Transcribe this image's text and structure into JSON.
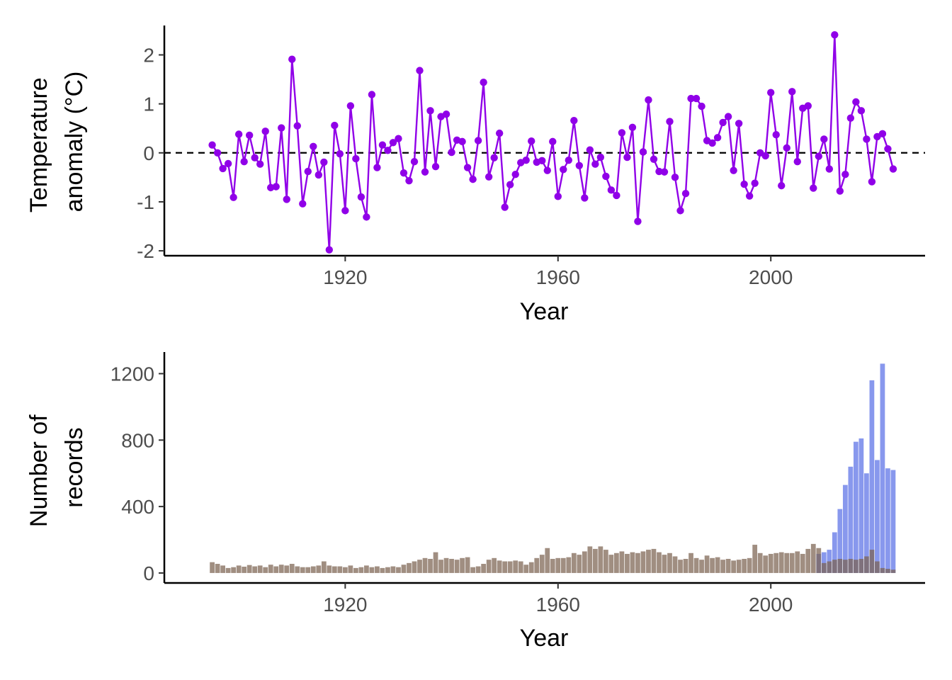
{
  "chart_data": [
    {
      "type": "line",
      "xlabel": "Year",
      "ylabel_lines": [
        "Temperature",
        "anomaly (°C)"
      ],
      "xlim": [
        1886,
        2029
      ],
      "ylim": [
        -2.1,
        2.6
      ],
      "xticks": [
        1920,
        1960,
        2000
      ],
      "yticks": [
        -2,
        -1,
        0,
        1,
        2
      ],
      "ytick_labels": [
        "-2",
        "-1",
        "0",
        "1",
        "2"
      ],
      "reference_line": 0,
      "color": "#9000e8",
      "grid": false,
      "x": [
        1895,
        1896,
        1897,
        1898,
        1899,
        1900,
        1901,
        1902,
        1903,
        1904,
        1905,
        1906,
        1907,
        1908,
        1909,
        1910,
        1911,
        1912,
        1913,
        1914,
        1915,
        1916,
        1917,
        1918,
        1919,
        1920,
        1921,
        1922,
        1923,
        1924,
        1925,
        1926,
        1927,
        1928,
        1929,
        1930,
        1931,
        1932,
        1933,
        1934,
        1935,
        1936,
        1937,
        1938,
        1939,
        1940,
        1941,
        1942,
        1943,
        1944,
        1945,
        1946,
        1947,
        1948,
        1949,
        1950,
        1951,
        1952,
        1953,
        1954,
        1955,
        1956,
        1957,
        1958,
        1959,
        1960,
        1961,
        1962,
        1963,
        1964,
        1965,
        1966,
        1967,
        1968,
        1969,
        1970,
        1971,
        1972,
        1973,
        1974,
        1975,
        1976,
        1977,
        1978,
        1979,
        1980,
        1981,
        1982,
        1983,
        1984,
        1985,
        1986,
        1987,
        1988,
        1989,
        1990,
        1991,
        1992,
        1993,
        1994,
        1995,
        1996,
        1997,
        1998,
        1999,
        2000,
        2001,
        2002,
        2003,
        2004,
        2005,
        2006,
        2007,
        2008,
        2009,
        2010,
        2011,
        2012,
        2013,
        2014,
        2015,
        2016,
        2017,
        2018,
        2019,
        2020,
        2021,
        2022,
        2023
      ],
      "y": [
        0.16,
        0.0,
        -0.32,
        -0.22,
        -0.91,
        0.38,
        -0.18,
        0.36,
        -0.1,
        -0.23,
        0.44,
        -0.71,
        -0.69,
        0.51,
        -0.95,
        1.91,
        0.55,
        -1.04,
        -0.38,
        0.13,
        -0.45,
        -0.19,
        -1.98,
        0.56,
        -0.02,
        -1.18,
        0.96,
        -0.12,
        -0.9,
        -1.31,
        1.19,
        -0.3,
        0.16,
        0.05,
        0.21,
        0.29,
        -0.41,
        -0.57,
        -0.18,
        1.68,
        -0.39,
        0.86,
        -0.28,
        0.74,
        0.79,
        0.01,
        0.26,
        0.23,
        -0.3,
        -0.54,
        0.25,
        1.44,
        -0.49,
        -0.1,
        0.4,
        -1.11,
        -0.65,
        -0.44,
        -0.2,
        -0.15,
        0.24,
        -0.19,
        -0.16,
        -0.36,
        0.23,
        -0.89,
        -0.34,
        -0.15,
        0.66,
        -0.26,
        -0.92,
        0.06,
        -0.23,
        -0.09,
        -0.48,
        -0.76,
        -0.87,
        0.41,
        -0.09,
        0.52,
        -1.4,
        0.02,
        1.08,
        -0.13,
        -0.38,
        -0.39,
        0.64,
        -0.5,
        -1.18,
        -0.83,
        1.11,
        1.11,
        0.95,
        0.25,
        0.2,
        0.31,
        0.62,
        0.74,
        -0.36,
        0.6,
        -0.64,
        -0.88,
        -0.62,
        0.0,
        -0.06,
        1.23,
        0.37,
        -0.67,
        0.1,
        1.25,
        -0.18,
        0.91,
        0.96,
        -0.72,
        -0.07,
        0.28,
        -0.33,
        2.41,
        -0.78,
        -0.44,
        0.71,
        1.04,
        0.86,
        0.28,
        -0.59,
        0.33,
        0.39,
        0.08,
        -0.33
      ]
    },
    {
      "type": "bar",
      "xlabel": "Year",
      "ylabel_lines": [
        "Number of",
        "records"
      ],
      "xlim": [
        1886,
        2029
      ],
      "ylim": [
        -60,
        1330
      ],
      "xticks": [
        1920,
        1960,
        2000
      ],
      "yticks": [
        0,
        400,
        800,
        1200
      ],
      "ytick_labels": [
        "0",
        "400",
        "800",
        "1200"
      ],
      "grid": false,
      "series": [
        {
          "color": "#5a70e6",
          "opacity": 0.72,
          "x": [
            2009,
            2010,
            2011,
            2012,
            2013,
            2014,
            2015,
            2016,
            2017,
            2018,
            2019,
            2020,
            2021,
            2022,
            2023
          ],
          "values": [
            115,
            125,
            140,
            245,
            385,
            530,
            640,
            790,
            810,
            600,
            1160,
            680,
            1260,
            630,
            620
          ]
        },
        {
          "color": "#7c6350",
          "opacity": 0.72,
          "x": [
            1895,
            1896,
            1897,
            1898,
            1899,
            1900,
            1901,
            1902,
            1903,
            1904,
            1905,
            1906,
            1907,
            1908,
            1909,
            1910,
            1911,
            1912,
            1913,
            1914,
            1915,
            1916,
            1917,
            1918,
            1919,
            1920,
            1921,
            1922,
            1923,
            1924,
            1925,
            1926,
            1927,
            1928,
            1929,
            1930,
            1931,
            1932,
            1933,
            1934,
            1935,
            1936,
            1937,
            1938,
            1939,
            1940,
            1941,
            1942,
            1943,
            1944,
            1945,
            1946,
            1947,
            1948,
            1949,
            1950,
            1951,
            1952,
            1953,
            1954,
            1955,
            1956,
            1957,
            1958,
            1959,
            1960,
            1961,
            1962,
            1963,
            1964,
            1965,
            1966,
            1967,
            1968,
            1969,
            1970,
            1971,
            1972,
            1973,
            1974,
            1975,
            1976,
            1977,
            1978,
            1979,
            1980,
            1981,
            1982,
            1983,
            1984,
            1985,
            1986,
            1987,
            1988,
            1989,
            1990,
            1991,
            1992,
            1993,
            1994,
            1995,
            1996,
            1997,
            1998,
            1999,
            2000,
            2001,
            2002,
            2003,
            2004,
            2005,
            2006,
            2007,
            2008,
            2009,
            2010,
            2011,
            2012,
            2013,
            2014,
            2015,
            2016,
            2017,
            2018,
            2019,
            2020,
            2021,
            2022,
            2023
          ],
          "values": [
            65,
            55,
            45,
            30,
            35,
            45,
            38,
            48,
            40,
            45,
            35,
            50,
            40,
            50,
            45,
            55,
            40,
            35,
            35,
            40,
            45,
            70,
            45,
            40,
            40,
            35,
            45,
            30,
            35,
            45,
            35,
            40,
            30,
            35,
            40,
            35,
            50,
            60,
            70,
            80,
            90,
            85,
            125,
            80,
            90,
            85,
            80,
            90,
            95,
            35,
            40,
            55,
            80,
            90,
            75,
            70,
            70,
            75,
            70,
            50,
            65,
            90,
            110,
            150,
            85,
            90,
            90,
            95,
            120,
            110,
            130,
            160,
            145,
            160,
            140,
            110,
            120,
            130,
            115,
            125,
            120,
            130,
            140,
            145,
            125,
            110,
            120,
            100,
            80,
            85,
            120,
            90,
            80,
            105,
            90,
            95,
            80,
            85,
            75,
            80,
            85,
            90,
            170,
            120,
            105,
            115,
            120,
            125,
            120,
            120,
            130,
            115,
            145,
            175,
            150,
            60,
            70,
            80,
            85,
            80,
            85,
            80,
            85,
            100,
            140,
            70,
            30,
            25,
            20
          ]
        }
      ]
    }
  ]
}
